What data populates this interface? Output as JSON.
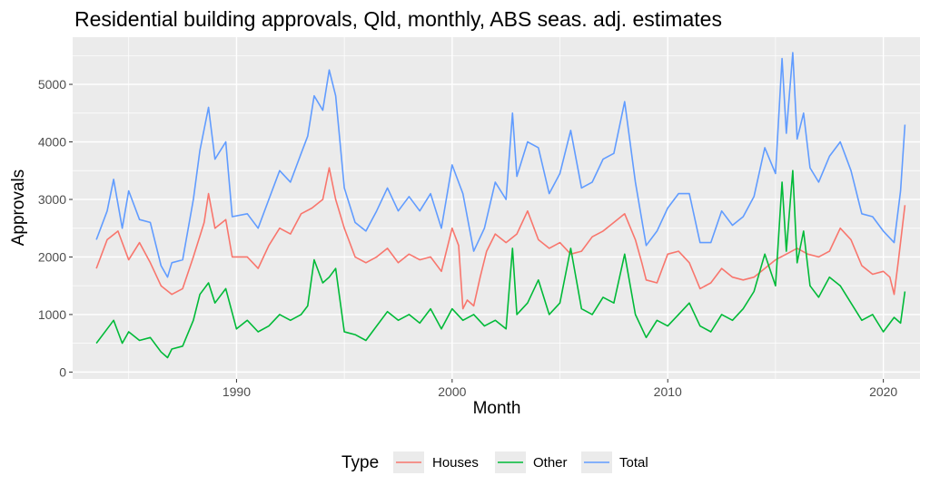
{
  "chart_data": {
    "type": "line",
    "title": "Residential building approvals, Qld, monthly, ABS seas. adj. estimates",
    "xlabel": "Month",
    "ylabel": "Approvals",
    "xlim": [
      1982.4,
      2021.7
    ],
    "ylim": [
      -120,
      5820
    ],
    "x_ticks": [
      1990,
      2000,
      2010,
      2020
    ],
    "x_tick_labels": [
      "1990",
      "2000",
      "2010",
      "2020"
    ],
    "y_ticks": [
      0,
      1000,
      2000,
      3000,
      4000,
      5000
    ],
    "y_tick_labels": [
      "0",
      "1000",
      "2000",
      "3000",
      "4000",
      "5000"
    ],
    "grid": true,
    "legend": {
      "title": "Type",
      "position": "bottom"
    },
    "series": [
      {
        "name": "Houses",
        "color": "#F8766D",
        "points": [
          [
            1983.5,
            1800
          ],
          [
            1984.0,
            2300
          ],
          [
            1984.5,
            2450
          ],
          [
            1985.0,
            1950
          ],
          [
            1985.5,
            2250
          ],
          [
            1986.0,
            1900
          ],
          [
            1986.5,
            1500
          ],
          [
            1987.0,
            1350
          ],
          [
            1987.5,
            1450
          ],
          [
            1988.0,
            2000
          ],
          [
            1988.5,
            2600
          ],
          [
            1988.7,
            3100
          ],
          [
            1989.0,
            2500
          ],
          [
            1989.5,
            2650
          ],
          [
            1989.8,
            2000
          ],
          [
            1990.5,
            2000
          ],
          [
            1991.0,
            1800
          ],
          [
            1991.5,
            2200
          ],
          [
            1992.0,
            2500
          ],
          [
            1992.5,
            2400
          ],
          [
            1993.0,
            2750
          ],
          [
            1993.5,
            2850
          ],
          [
            1994.0,
            3000
          ],
          [
            1994.3,
            3550
          ],
          [
            1994.6,
            3000
          ],
          [
            1995.0,
            2500
          ],
          [
            1995.5,
            2000
          ],
          [
            1996.0,
            1900
          ],
          [
            1996.5,
            2000
          ],
          [
            1997.0,
            2150
          ],
          [
            1997.5,
            1900
          ],
          [
            1998.0,
            2050
          ],
          [
            1998.5,
            1950
          ],
          [
            1999.0,
            2000
          ],
          [
            1999.5,
            1750
          ],
          [
            2000.0,
            2500
          ],
          [
            2000.3,
            2200
          ],
          [
            2000.5,
            1100
          ],
          [
            2000.7,
            1250
          ],
          [
            2001.0,
            1150
          ],
          [
            2001.3,
            1650
          ],
          [
            2001.6,
            2100
          ],
          [
            2002.0,
            2400
          ],
          [
            2002.5,
            2250
          ],
          [
            2003.0,
            2400
          ],
          [
            2003.5,
            2800
          ],
          [
            2004.0,
            2300
          ],
          [
            2004.5,
            2150
          ],
          [
            2005.0,
            2250
          ],
          [
            2005.5,
            2050
          ],
          [
            2006.0,
            2100
          ],
          [
            2006.5,
            2350
          ],
          [
            2007.0,
            2450
          ],
          [
            2007.5,
            2600
          ],
          [
            2008.0,
            2750
          ],
          [
            2008.5,
            2300
          ],
          [
            2008.8,
            1900
          ],
          [
            2009.0,
            1600
          ],
          [
            2009.5,
            1550
          ],
          [
            2010.0,
            2050
          ],
          [
            2010.5,
            2100
          ],
          [
            2011.0,
            1900
          ],
          [
            2011.5,
            1450
          ],
          [
            2012.0,
            1550
          ],
          [
            2012.5,
            1800
          ],
          [
            2013.0,
            1650
          ],
          [
            2013.5,
            1600
          ],
          [
            2014.0,
            1650
          ],
          [
            2014.5,
            1800
          ],
          [
            2015.0,
            1950
          ],
          [
            2015.5,
            2050
          ],
          [
            2016.0,
            2150
          ],
          [
            2016.5,
            2050
          ],
          [
            2017.0,
            2000
          ],
          [
            2017.5,
            2100
          ],
          [
            2018.0,
            2500
          ],
          [
            2018.5,
            2300
          ],
          [
            2019.0,
            1850
          ],
          [
            2019.5,
            1700
          ],
          [
            2020.0,
            1750
          ],
          [
            2020.3,
            1650
          ],
          [
            2020.5,
            1350
          ],
          [
            2020.7,
            1950
          ],
          [
            2021.0,
            2900
          ]
        ]
      },
      {
        "name": "Other",
        "color": "#00BA38",
        "points": [
          [
            1983.5,
            500
          ],
          [
            1984.0,
            750
          ],
          [
            1984.3,
            900
          ],
          [
            1984.7,
            500
          ],
          [
            1985.0,
            700
          ],
          [
            1985.5,
            550
          ],
          [
            1986.0,
            600
          ],
          [
            1986.5,
            350
          ],
          [
            1986.8,
            250
          ],
          [
            1987.0,
            400
          ],
          [
            1987.5,
            450
          ],
          [
            1988.0,
            900
          ],
          [
            1988.3,
            1350
          ],
          [
            1988.7,
            1550
          ],
          [
            1989.0,
            1200
          ],
          [
            1989.5,
            1450
          ],
          [
            1990.0,
            750
          ],
          [
            1990.5,
            900
          ],
          [
            1991.0,
            700
          ],
          [
            1991.5,
            800
          ],
          [
            1992.0,
            1000
          ],
          [
            1992.5,
            900
          ],
          [
            1993.0,
            1000
          ],
          [
            1993.3,
            1150
          ],
          [
            1993.6,
            1950
          ],
          [
            1994.0,
            1550
          ],
          [
            1994.3,
            1650
          ],
          [
            1994.6,
            1800
          ],
          [
            1995.0,
            700
          ],
          [
            1995.5,
            650
          ],
          [
            1996.0,
            550
          ],
          [
            1996.5,
            800
          ],
          [
            1997.0,
            1050
          ],
          [
            1997.5,
            900
          ],
          [
            1998.0,
            1000
          ],
          [
            1998.5,
            850
          ],
          [
            1999.0,
            1100
          ],
          [
            1999.5,
            750
          ],
          [
            2000.0,
            1100
          ],
          [
            2000.5,
            900
          ],
          [
            2001.0,
            1000
          ],
          [
            2001.5,
            800
          ],
          [
            2002.0,
            900
          ],
          [
            2002.5,
            750
          ],
          [
            2002.8,
            2150
          ],
          [
            2003.0,
            1000
          ],
          [
            2003.5,
            1200
          ],
          [
            2004.0,
            1600
          ],
          [
            2004.5,
            1000
          ],
          [
            2005.0,
            1200
          ],
          [
            2005.5,
            2150
          ],
          [
            2006.0,
            1100
          ],
          [
            2006.5,
            1000
          ],
          [
            2007.0,
            1300
          ],
          [
            2007.5,
            1200
          ],
          [
            2008.0,
            2050
          ],
          [
            2008.5,
            1000
          ],
          [
            2009.0,
            600
          ],
          [
            2009.5,
            900
          ],
          [
            2010.0,
            800
          ],
          [
            2010.5,
            1000
          ],
          [
            2011.0,
            1200
          ],
          [
            2011.5,
            800
          ],
          [
            2012.0,
            700
          ],
          [
            2012.5,
            1000
          ],
          [
            2013.0,
            900
          ],
          [
            2013.5,
            1100
          ],
          [
            2014.0,
            1400
          ],
          [
            2014.5,
            2050
          ],
          [
            2015.0,
            1500
          ],
          [
            2015.3,
            3300
          ],
          [
            2015.5,
            2100
          ],
          [
            2015.8,
            3500
          ],
          [
            2016.0,
            1900
          ],
          [
            2016.3,
            2450
          ],
          [
            2016.6,
            1500
          ],
          [
            2017.0,
            1300
          ],
          [
            2017.5,
            1650
          ],
          [
            2018.0,
            1500
          ],
          [
            2018.5,
            1200
          ],
          [
            2019.0,
            900
          ],
          [
            2019.5,
            1000
          ],
          [
            2020.0,
            700
          ],
          [
            2020.5,
            950
          ],
          [
            2020.8,
            850
          ],
          [
            2021.0,
            1400
          ]
        ]
      },
      {
        "name": "Total",
        "color": "#619CFF",
        "points": [
          [
            1983.5,
            2300
          ],
          [
            1984.0,
            2800
          ],
          [
            1984.3,
            3350
          ],
          [
            1984.7,
            2500
          ],
          [
            1985.0,
            3150
          ],
          [
            1985.5,
            2650
          ],
          [
            1986.0,
            2600
          ],
          [
            1986.5,
            1850
          ],
          [
            1986.8,
            1650
          ],
          [
            1987.0,
            1900
          ],
          [
            1987.5,
            1950
          ],
          [
            1988.0,
            3000
          ],
          [
            1988.3,
            3850
          ],
          [
            1988.7,
            4600
          ],
          [
            1989.0,
            3700
          ],
          [
            1989.5,
            4000
          ],
          [
            1989.8,
            2700
          ],
          [
            1990.5,
            2750
          ],
          [
            1991.0,
            2500
          ],
          [
            1991.5,
            3000
          ],
          [
            1992.0,
            3500
          ],
          [
            1992.5,
            3300
          ],
          [
            1993.0,
            3800
          ],
          [
            1993.3,
            4100
          ],
          [
            1993.6,
            4800
          ],
          [
            1994.0,
            4550
          ],
          [
            1994.3,
            5250
          ],
          [
            1994.6,
            4800
          ],
          [
            1995.0,
            3200
          ],
          [
            1995.5,
            2600
          ],
          [
            1996.0,
            2450
          ],
          [
            1996.5,
            2800
          ],
          [
            1997.0,
            3200
          ],
          [
            1997.5,
            2800
          ],
          [
            1998.0,
            3050
          ],
          [
            1998.5,
            2800
          ],
          [
            1999.0,
            3100
          ],
          [
            1999.5,
            2500
          ],
          [
            2000.0,
            3600
          ],
          [
            2000.5,
            3100
          ],
          [
            2001.0,
            2100
          ],
          [
            2001.5,
            2500
          ],
          [
            2002.0,
            3300
          ],
          [
            2002.5,
            3000
          ],
          [
            2002.8,
            4500
          ],
          [
            2003.0,
            3400
          ],
          [
            2003.5,
            4000
          ],
          [
            2004.0,
            3900
          ],
          [
            2004.5,
            3100
          ],
          [
            2005.0,
            3450
          ],
          [
            2005.5,
            4200
          ],
          [
            2006.0,
            3200
          ],
          [
            2006.5,
            3300
          ],
          [
            2007.0,
            3700
          ],
          [
            2007.5,
            3800
          ],
          [
            2008.0,
            4700
          ],
          [
            2008.5,
            3300
          ],
          [
            2009.0,
            2200
          ],
          [
            2009.5,
            2450
          ],
          [
            2010.0,
            2850
          ],
          [
            2010.5,
            3100
          ],
          [
            2011.0,
            3100
          ],
          [
            2011.5,
            2250
          ],
          [
            2012.0,
            2250
          ],
          [
            2012.5,
            2800
          ],
          [
            2013.0,
            2550
          ],
          [
            2013.5,
            2700
          ],
          [
            2014.0,
            3050
          ],
          [
            2014.5,
            3900
          ],
          [
            2015.0,
            3450
          ],
          [
            2015.3,
            5450
          ],
          [
            2015.5,
            4150
          ],
          [
            2015.8,
            5550
          ],
          [
            2016.0,
            4050
          ],
          [
            2016.3,
            4500
          ],
          [
            2016.6,
            3550
          ],
          [
            2017.0,
            3300
          ],
          [
            2017.5,
            3750
          ],
          [
            2018.0,
            4000
          ],
          [
            2018.5,
            3500
          ],
          [
            2019.0,
            2750
          ],
          [
            2019.5,
            2700
          ],
          [
            2020.0,
            2450
          ],
          [
            2020.5,
            2250
          ],
          [
            2020.8,
            3150
          ],
          [
            2021.0,
            4300
          ]
        ]
      }
    ]
  }
}
